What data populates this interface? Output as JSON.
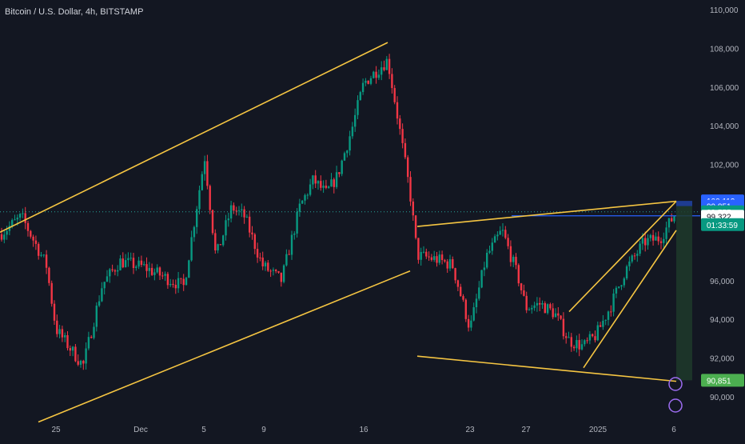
{
  "chart_data": {
    "type": "candlestick",
    "title": "Bitcoin / U.S. Dollar, 4h, BITSTAMP",
    "x_tick_labels": [
      "25",
      "Dec",
      "5",
      "9",
      "16",
      "23",
      "27",
      "2025",
      "6"
    ],
    "y_tick_labels": [
      "110,000",
      "108,000",
      "106,000",
      "104,000",
      "102,000",
      "96,000",
      "94,000",
      "92,000",
      "90,000"
    ],
    "ylim": [
      89000,
      110500
    ],
    "price_anchors": [
      {
        "day": "21 Nov",
        "price": 98400
      },
      {
        "day": "22 Nov",
        "price": 99300
      },
      {
        "day": "24 Nov",
        "price": 96800
      },
      {
        "day": "25 Nov",
        "price": 93500
      },
      {
        "day": "26 Nov",
        "price": 91600
      },
      {
        "day": "28 Nov",
        "price": 95800
      },
      {
        "day": "30 Nov",
        "price": 97000
      },
      {
        "day": "02 Dec",
        "price": 96700
      },
      {
        "day": "04 Dec",
        "price": 95700
      },
      {
        "day": "05 Dec",
        "price": 102400
      },
      {
        "day": "06 Dec",
        "price": 97200
      },
      {
        "day": "07 Dec",
        "price": 99800
      },
      {
        "day": "08 Dec",
        "price": 99300
      },
      {
        "day": "09 Dec",
        "price": 96800
      },
      {
        "day": "10 Dec",
        "price": 96000
      },
      {
        "day": "11 Dec",
        "price": 99800
      },
      {
        "day": "12 Dec",
        "price": 101200
      },
      {
        "day": "13 Dec",
        "price": 100500
      },
      {
        "day": "14 Dec",
        "price": 101400
      },
      {
        "day": "15 Dec",
        "price": 103800
      },
      {
        "day": "16 Dec",
        "price": 106200
      },
      {
        "day": "17 Dec",
        "price": 107400
      },
      {
        "day": "18 Dec",
        "price": 104800
      },
      {
        "day": "19 Dec",
        "price": 100500
      },
      {
        "day": "20 Dec",
        "price": 97300
      },
      {
        "day": "21 Dec",
        "price": 97100
      },
      {
        "day": "22 Dec",
        "price": 96800
      },
      {
        "day": "23 Dec",
        "price": 93500
      },
      {
        "day": "24 Dec",
        "price": 97200
      },
      {
        "day": "25 Dec",
        "price": 98600
      },
      {
        "day": "26 Dec",
        "price": 96200
      },
      {
        "day": "27 Dec",
        "price": 94600
      },
      {
        "day": "28 Dec",
        "price": 94800
      },
      {
        "day": "29 Dec",
        "price": 94300
      },
      {
        "day": "30 Dec",
        "price": 92900
      },
      {
        "day": "31 Dec",
        "price": 92600
      },
      {
        "day": "01 Jan",
        "price": 93200
      },
      {
        "day": "02 Jan",
        "price": 94700
      },
      {
        "day": "03 Jan",
        "price": 96500
      },
      {
        "day": "04 Jan",
        "price": 98000
      },
      {
        "day": "05 Jan",
        "price": 98200
      },
      {
        "day": "06 Jan",
        "price": 99550
      }
    ],
    "trendlines": [
      {
        "from": {
          "day": "21 Nov",
          "price": 98500
        },
        "to": {
          "day": "17 Dec",
          "price": 108300
        },
        "color": "#f5c542"
      },
      {
        "from": {
          "day": "23 Nov",
          "price": 88700
        },
        "to": {
          "day": "19 Dec",
          "price": 96500
        },
        "color": "#f5c542"
      },
      {
        "from": {
          "day": "20 Dec",
          "price": 98800
        },
        "to": {
          "day": "06 Jan",
          "price": 100100
        },
        "color": "#f5c542"
      },
      {
        "from": {
          "day": "20 Dec",
          "price": 92100
        },
        "to": {
          "day": "06 Jan",
          "price": 90800
        },
        "color": "#f5c542"
      },
      {
        "from": {
          "day": "30 Dec",
          "price": 94400
        },
        "to": {
          "day": "06 Jan",
          "price": 100100
        },
        "color": "#f5c542"
      },
      {
        "from": {
          "day": "31 Dec",
          "price": 91500
        },
        "to": {
          "day": "06 Jan",
          "price": 98600
        },
        "color": "#f5c542"
      }
    ],
    "horizontal_levels": [
      {
        "price": 99350,
        "color": "#2962ff",
        "label": "blue horizontal line"
      },
      {
        "price": 99555,
        "color": "#26a69a",
        "label": "current price dotted line"
      }
    ],
    "price_tags": [
      {
        "price": 100119,
        "text": "100,119",
        "bg": "#2962ff",
        "fg": "#ffffff"
      },
      {
        "price": 99851,
        "text": "99,851",
        "bg": "#2962ff",
        "fg": "#ffffff"
      },
      {
        "price": 99555,
        "text": "99,555",
        "bg": "#089981",
        "fg": "#ffffff"
      },
      {
        "price": 99322,
        "text": "99,322",
        "bg": "#ffffff",
        "fg": "#131722"
      },
      {
        "price": 90851,
        "text": "90,851",
        "bg": "#4caf50",
        "fg": "#ffffff"
      }
    ],
    "countdown": "01:33:59",
    "position_box": {
      "start_day": "06 Jan",
      "entry": 99851,
      "target": 90851,
      "fill": "#1e3a2a",
      "stop_fill": "#2962ff"
    },
    "colors": {
      "up": "#089981",
      "down": "#f23645",
      "trend": "#f5c542",
      "bg": "#131722"
    }
  }
}
